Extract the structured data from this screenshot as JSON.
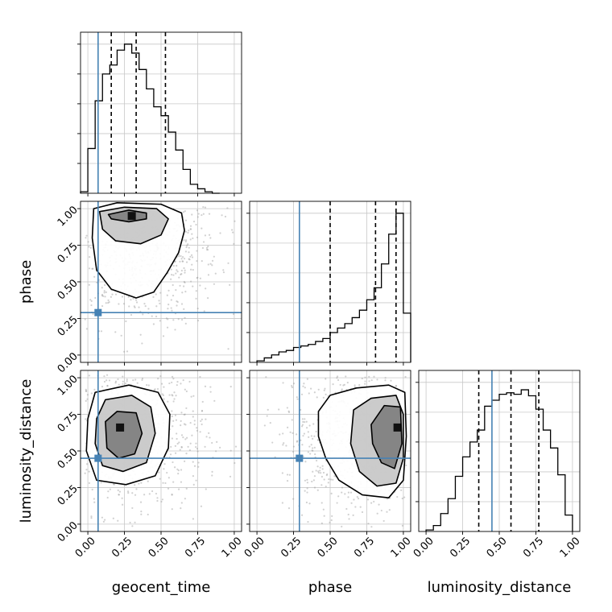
{
  "chart_data": {
    "type": "corner",
    "parameters": [
      "geocent_time",
      "phase",
      "luminosity_distance"
    ],
    "axis_labels": {
      "x": [
        "geocent_time",
        "phase",
        "luminosity_distance"
      ],
      "y_row1": "phase",
      "y_row2": "luminosity_distance"
    },
    "ticks": [
      0.0,
      0.25,
      0.5,
      0.75,
      1.0
    ],
    "tick_labels": [
      "0.00",
      "0.25",
      "0.50",
      "0.75",
      "1.00"
    ],
    "range": [
      -0.05,
      1.05
    ],
    "grid": true,
    "truths": {
      "geocent_time": 0.07,
      "phase": 0.29,
      "luminosity_distance": 0.45
    },
    "quantiles": {
      "geocent_time": [
        0.16,
        0.33,
        0.53
      ],
      "phase": [
        0.5,
        0.81,
        0.95
      ],
      "luminosity_distance": [
        0.36,
        0.58,
        0.77
      ]
    },
    "histograms": {
      "geocent_time": {
        "bin_edges": [
          -0.05,
          0.0,
          0.05,
          0.1,
          0.15,
          0.2,
          0.25,
          0.3,
          0.35,
          0.4,
          0.45,
          0.5,
          0.55,
          0.6,
          0.65,
          0.7,
          0.75,
          0.8,
          0.85,
          0.9
        ],
        "counts": [
          0.01,
          0.3,
          0.62,
          0.8,
          0.86,
          0.96,
          1.0,
          0.94,
          0.83,
          0.7,
          0.58,
          0.52,
          0.41,
          0.29,
          0.16,
          0.06,
          0.03,
          0.01,
          0.0
        ],
        "ylim": [
          0,
          1.08
        ]
      },
      "phase": {
        "bin_edges": [
          0.0,
          0.05,
          0.1,
          0.15,
          0.2,
          0.25,
          0.3,
          0.35,
          0.4,
          0.45,
          0.5,
          0.55,
          0.6,
          0.65,
          0.7,
          0.75,
          0.8,
          0.85,
          0.9,
          0.95,
          1.0,
          1.05
        ],
        "counts": [
          0.01,
          0.03,
          0.05,
          0.07,
          0.08,
          0.1,
          0.11,
          0.12,
          0.14,
          0.16,
          0.2,
          0.23,
          0.26,
          0.3,
          0.35,
          0.42,
          0.5,
          0.66,
          0.86,
          1.0,
          0.33
        ],
        "ylim": [
          0,
          1.08
        ]
      },
      "luminosity_distance": {
        "bin_edges": [
          0.0,
          0.05,
          0.1,
          0.15,
          0.2,
          0.25,
          0.3,
          0.35,
          0.4,
          0.45,
          0.5,
          0.55,
          0.6,
          0.65,
          0.7,
          0.75,
          0.8,
          0.85,
          0.9,
          0.95,
          1.0
        ],
        "counts": [
          0.01,
          0.04,
          0.12,
          0.22,
          0.37,
          0.5,
          0.6,
          0.68,
          0.84,
          0.88,
          0.92,
          0.93,
          0.92,
          0.95,
          0.91,
          0.82,
          0.68,
          0.56,
          0.38,
          0.11
        ],
        "ylim": [
          0,
          1.08
        ]
      }
    },
    "joint_2d": [
      {
        "x": "geocent_time",
        "y": "phase",
        "peak": [
          0.3,
          0.95
        ],
        "contours": [
          [
            [
              0.04,
              1.0
            ],
            [
              0.2,
              1.04
            ],
            [
              0.5,
              1.03
            ],
            [
              0.64,
              0.97
            ],
            [
              0.66,
              0.85
            ],
            [
              0.62,
              0.7
            ],
            [
              0.54,
              0.56
            ],
            [
              0.45,
              0.43
            ],
            [
              0.33,
              0.39
            ],
            [
              0.16,
              0.45
            ],
            [
              0.06,
              0.58
            ],
            [
              0.03,
              0.8
            ]
          ],
          [
            [
              0.08,
              0.98
            ],
            [
              0.25,
              1.01
            ],
            [
              0.47,
              1.0
            ],
            [
              0.55,
              0.93
            ],
            [
              0.5,
              0.82
            ],
            [
              0.36,
              0.76
            ],
            [
              0.19,
              0.78
            ],
            [
              0.1,
              0.86
            ]
          ],
          [
            [
              0.14,
              0.96
            ],
            [
              0.28,
              0.99
            ],
            [
              0.4,
              0.97
            ],
            [
              0.4,
              0.93
            ],
            [
              0.28,
              0.91
            ],
            [
              0.16,
              0.93
            ]
          ]
        ]
      },
      {
        "x": "geocent_time",
        "y": "luminosity_distance",
        "peak": [
          0.22,
          0.66
        ],
        "contours": [
          [
            [
              0.0,
              0.72
            ],
            [
              0.05,
              0.9
            ],
            [
              0.28,
              0.95
            ],
            [
              0.48,
              0.9
            ],
            [
              0.56,
              0.75
            ],
            [
              0.55,
              0.52
            ],
            [
              0.46,
              0.33
            ],
            [
              0.26,
              0.27
            ],
            [
              0.06,
              0.3
            ],
            [
              -0.01,
              0.5
            ]
          ],
          [
            [
              0.06,
              0.72
            ],
            [
              0.12,
              0.85
            ],
            [
              0.3,
              0.88
            ],
            [
              0.43,
              0.8
            ],
            [
              0.46,
              0.62
            ],
            [
              0.4,
              0.42
            ],
            [
              0.24,
              0.36
            ],
            [
              0.1,
              0.4
            ],
            [
              0.05,
              0.55
            ]
          ],
          [
            [
              0.12,
              0.7
            ],
            [
              0.2,
              0.77
            ],
            [
              0.33,
              0.76
            ],
            [
              0.37,
              0.62
            ],
            [
              0.32,
              0.48
            ],
            [
              0.21,
              0.45
            ],
            [
              0.13,
              0.52
            ]
          ]
        ]
      },
      {
        "x": "phase",
        "y": "luminosity_distance",
        "peak": [
          0.96,
          0.66
        ],
        "contours": [
          [
            [
              0.42,
              0.77
            ],
            [
              0.5,
              0.88
            ],
            [
              0.68,
              0.93
            ],
            [
              0.9,
              0.95
            ],
            [
              1.01,
              0.9
            ],
            [
              1.02,
              0.6
            ],
            [
              1.0,
              0.3
            ],
            [
              0.9,
              0.18
            ],
            [
              0.72,
              0.2
            ],
            [
              0.56,
              0.3
            ],
            [
              0.47,
              0.45
            ],
            [
              0.42,
              0.6
            ]
          ],
          [
            [
              0.66,
              0.78
            ],
            [
              0.78,
              0.86
            ],
            [
              0.95,
              0.88
            ],
            [
              1.0,
              0.75
            ],
            [
              1.0,
              0.45
            ],
            [
              0.95,
              0.28
            ],
            [
              0.82,
              0.26
            ],
            [
              0.7,
              0.36
            ],
            [
              0.64,
              0.55
            ]
          ],
          [
            [
              0.78,
              0.68
            ],
            [
              0.87,
              0.81
            ],
            [
              0.98,
              0.8
            ],
            [
              0.99,
              0.55
            ],
            [
              0.94,
              0.38
            ],
            [
              0.85,
              0.42
            ],
            [
              0.79,
              0.55
            ]
          ]
        ]
      }
    ]
  }
}
